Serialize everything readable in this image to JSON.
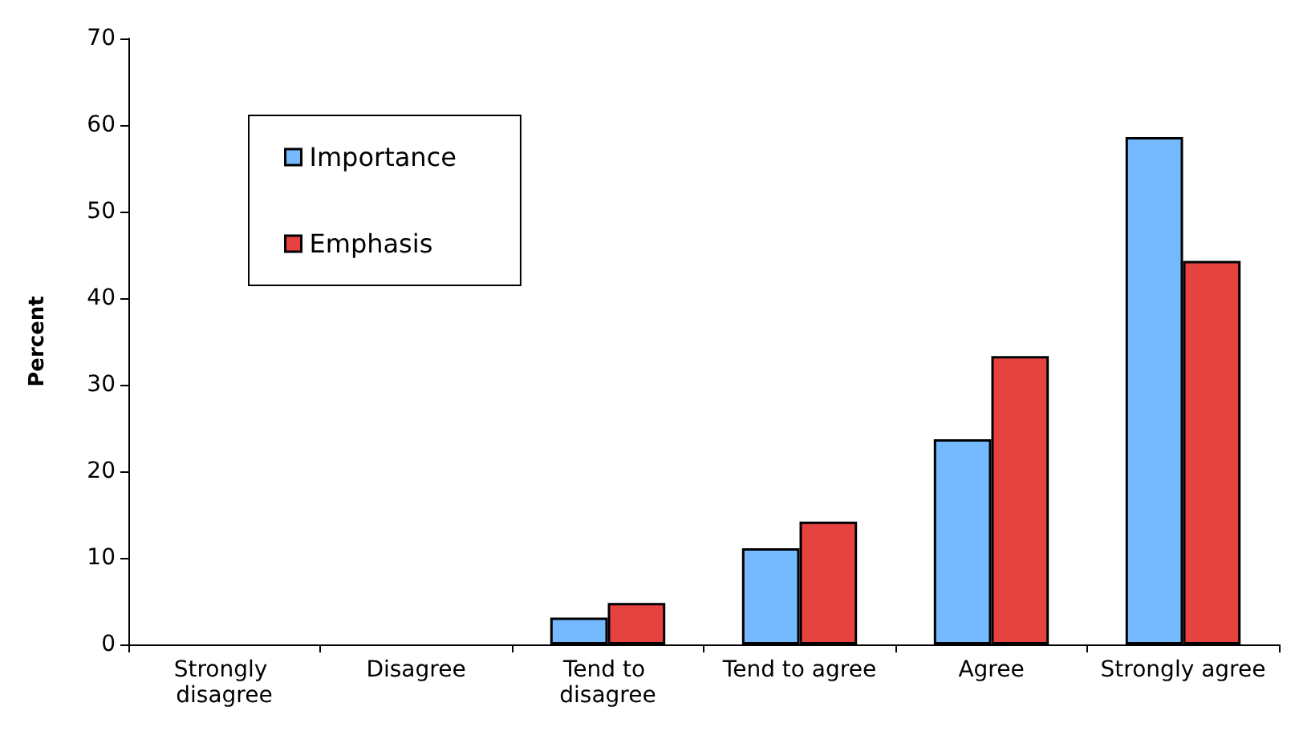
{
  "chart_data": {
    "type": "bar",
    "ylabel": "Percent",
    "categories": [
      "Strongly disagree",
      "Disagree",
      "Tend to disagree",
      "Tend to agree",
      "Agree",
      "Strongly agree"
    ],
    "series": [
      {
        "name": "Importance",
        "color": "#75b9fe",
        "values": [
          0,
          0,
          3.1,
          11.1,
          23.7,
          58.6
        ]
      },
      {
        "name": "Emphasis",
        "color": "#e64340",
        "values": [
          0,
          0,
          4.8,
          14.2,
          33.3,
          44.3
        ]
      }
    ],
    "ylim": [
      0,
      70
    ],
    "yticks": [
      0,
      10,
      20,
      30,
      40,
      50,
      60,
      70
    ],
    "grid": false,
    "legend": "top left"
  }
}
